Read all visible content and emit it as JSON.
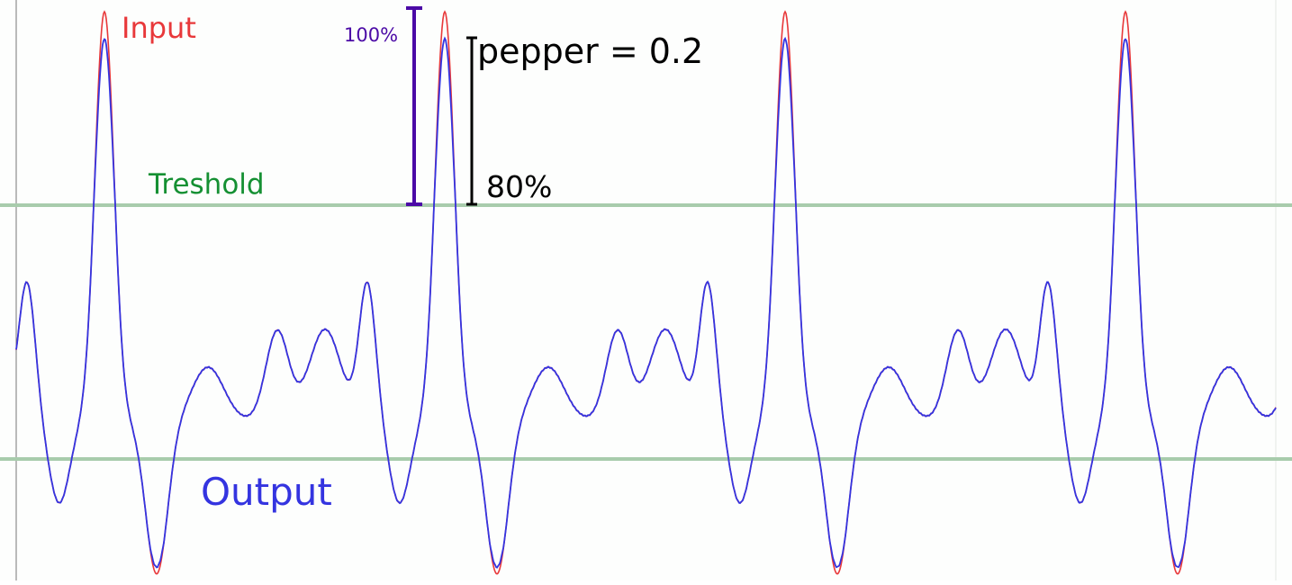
{
  "labels": {
    "input": "Input",
    "output": "Output",
    "threshold": "Treshold",
    "pepper": "pepper = 0.2",
    "full_scale": "100%",
    "threshold_level": "80%"
  },
  "colors": {
    "input": "#e8383a",
    "output": "#3434e0",
    "threshold_line": "#a8ccac",
    "threshold_text": "#159033",
    "bracket_100": "#4b0aa6",
    "bracket_80": "#000000"
  },
  "signal": {
    "period_count": 4,
    "peak_phases": [
      0.0,
      1.0,
      2.0,
      3.0
    ],
    "threshold_fraction": 0.8,
    "pepper": 0.2
  }
}
